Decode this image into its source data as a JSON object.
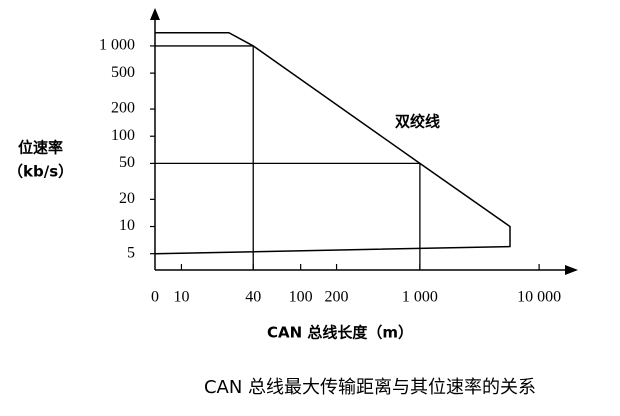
{
  "chart_data": {
    "type": "line",
    "caption": "CAN 总线最大传输距离与其位速率的关系",
    "xlabel": "CAN 总线长度（m）",
    "ylabel": "位速率",
    "yunit": "（kb/s）",
    "xscale": "log",
    "yscale": "log",
    "xlim": [
      6,
      20000
    ],
    "ylim": [
      3.3,
      2500
    ],
    "xticks": [
      0,
      10,
      40,
      100,
      200,
      {
        "value": 1000,
        "label": "1 000"
      },
      {
        "value": 10000,
        "label": "10 000"
      }
    ],
    "yticks": [
      {
        "value": 1000,
        "label": "1 000"
      },
      500,
      200,
      100,
      50,
      20,
      10,
      5
    ],
    "series": [
      {
        "name": "双绞线",
        "color": "#000000",
        "x": [
          0,
          25,
          40,
          1000,
          5700,
          5700,
          0
        ],
        "values": [
          1400,
          1400,
          1000,
          50,
          10,
          6,
          5
        ]
      }
    ],
    "guides": [
      {
        "x": 40,
        "y": 1000
      },
      {
        "x": 1000,
        "y": 50
      }
    ]
  }
}
